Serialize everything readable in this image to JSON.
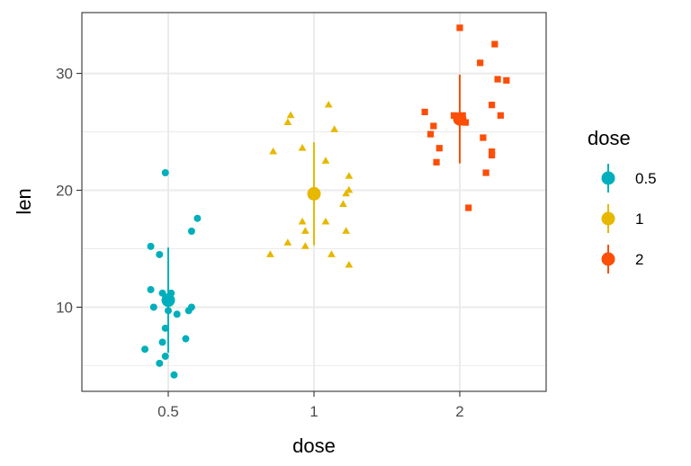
{
  "chart_data": {
    "type": "scatter",
    "subtype": "jittered strip chart with mean and standard deviation",
    "xlabel": "dose",
    "ylabel": "len",
    "categories": [
      "0.5",
      "1",
      "2"
    ],
    "x_tick_labels": [
      "0.5",
      "1",
      "2"
    ],
    "y_ticks": [
      10,
      20,
      30
    ],
    "y_tick_labels": [
      "10",
      "20",
      "30"
    ],
    "ylim": [
      2.8,
      35.2
    ],
    "grid": true,
    "legend": {
      "title": "dose",
      "position": "right",
      "entries": [
        "0.5",
        "1",
        "2"
      ]
    },
    "series": [
      {
        "name": "0.5",
        "color": "#00AFBB",
        "shape": "circle",
        "mean": 10.6,
        "sd_range": [
          6.1,
          15.1
        ],
        "points": [
          {
            "x": 0.42,
            "y": 6.4
          },
          {
            "x": 0.48,
            "y": 7.0
          },
          {
            "x": 0.47,
            "y": 5.2
          },
          {
            "x": 0.49,
            "y": 5.8
          },
          {
            "x": 0.49,
            "y": 8.2
          },
          {
            "x": 0.52,
            "y": 4.2
          },
          {
            "x": 0.53,
            "y": 9.4
          },
          {
            "x": 0.56,
            "y": 7.3
          },
          {
            "x": 0.57,
            "y": 9.7
          },
          {
            "x": 0.58,
            "y": 10.0
          },
          {
            "x": 0.5,
            "y": 9.7
          },
          {
            "x": 0.45,
            "y": 10.0
          },
          {
            "x": 0.44,
            "y": 11.5
          },
          {
            "x": 0.48,
            "y": 11.2
          },
          {
            "x": 0.51,
            "y": 11.2
          },
          {
            "x": 0.47,
            "y": 14.5
          },
          {
            "x": 0.44,
            "y": 15.2
          },
          {
            "x": 0.58,
            "y": 16.5
          },
          {
            "x": 0.6,
            "y": 17.6
          },
          {
            "x": 0.49,
            "y": 21.5
          }
        ]
      },
      {
        "name": "1",
        "color": "#E7B800",
        "shape": "triangle",
        "mean": 19.7,
        "sd_range": [
          15.3,
          24.1
        ],
        "points": [
          {
            "x": 0.85,
            "y": 14.5
          },
          {
            "x": 0.91,
            "y": 15.5
          },
          {
            "x": 0.97,
            "y": 15.2
          },
          {
            "x": 0.97,
            "y": 16.5
          },
          {
            "x": 1.11,
            "y": 16.5
          },
          {
            "x": 1.06,
            "y": 14.5
          },
          {
            "x": 1.12,
            "y": 13.6
          },
          {
            "x": 1.04,
            "y": 17.3
          },
          {
            "x": 0.96,
            "y": 17.3
          },
          {
            "x": 1.1,
            "y": 18.8
          },
          {
            "x": 1.11,
            "y": 19.7
          },
          {
            "x": 1.12,
            "y": 20.0
          },
          {
            "x": 1.12,
            "y": 21.2
          },
          {
            "x": 1.04,
            "y": 22.5
          },
          {
            "x": 0.86,
            "y": 23.3
          },
          {
            "x": 0.96,
            "y": 23.6
          },
          {
            "x": 0.91,
            "y": 25.8
          },
          {
            "x": 0.92,
            "y": 26.4
          },
          {
            "x": 1.07,
            "y": 25.2
          },
          {
            "x": 1.05,
            "y": 27.3
          }
        ]
      },
      {
        "name": "2",
        "color": "#FC4E07",
        "shape": "square",
        "mean": 26.1,
        "sd_range": [
          22.3,
          29.9
        ],
        "points": [
          {
            "x": 1.88,
            "y": 26.7
          },
          {
            "x": 1.9,
            "y": 24.8
          },
          {
            "x": 1.91,
            "y": 25.5
          },
          {
            "x": 1.93,
            "y": 23.6
          },
          {
            "x": 1.92,
            "y": 22.4
          },
          {
            "x": 1.98,
            "y": 26.4
          },
          {
            "x": 2.01,
            "y": 26.4
          },
          {
            "x": 2.03,
            "y": 18.5
          },
          {
            "x": 2.08,
            "y": 24.5
          },
          {
            "x": 2.09,
            "y": 21.5
          },
          {
            "x": 2.11,
            "y": 23.0
          },
          {
            "x": 2.11,
            "y": 23.3
          },
          {
            "x": 2.11,
            "y": 27.3
          },
          {
            "x": 2.14,
            "y": 26.4
          },
          {
            "x": 2.13,
            "y": 29.5
          },
          {
            "x": 2.16,
            "y": 29.4
          },
          {
            "x": 2.07,
            "y": 30.9
          },
          {
            "x": 2.12,
            "y": 32.5
          },
          {
            "x": 2.0,
            "y": 33.9
          },
          {
            "x": 2.02,
            "y": 25.8
          }
        ]
      }
    ]
  }
}
